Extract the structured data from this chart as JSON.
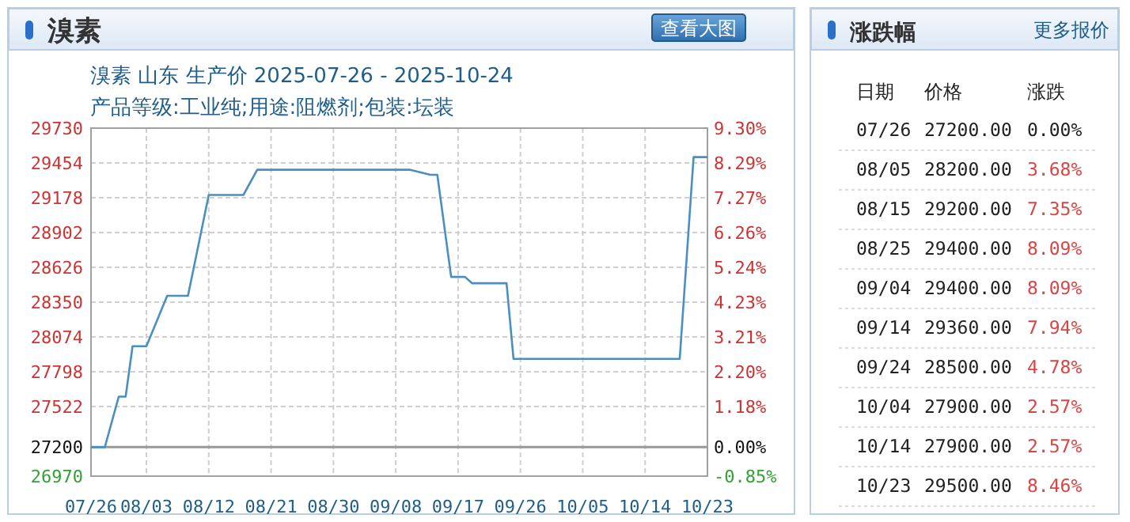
{
  "chart_data": [
    {
      "type": "line",
      "title": "溴素",
      "subtitle": "溴素 山东 生产价 2025-07-26 - 2025-10-24\n产品等级:工业纯;用途:阻燃剂;包装:坛装",
      "annotations": [
        "查看大图"
      ],
      "x": [
        "2025-07-26",
        "2025-07-28",
        "2025-07-30",
        "2025-07-31",
        "2025-08-01",
        "2025-08-03",
        "2025-08-06",
        "2025-08-09",
        "2025-08-12",
        "2025-08-17",
        "2025-08-19",
        "2025-09-10",
        "2025-09-13",
        "2025-09-14",
        "2025-09-16",
        "2025-09-18",
        "2025-09-19",
        "2025-09-24",
        "2025-09-25",
        "2025-10-19",
        "2025-10-21",
        "2025-10-23"
      ],
      "series": [
        {
          "color": "#4a8fbf",
          "values": [
            27200,
            27200,
            27600,
            27600,
            28000,
            28000,
            28400,
            28400,
            29200,
            29200,
            29400,
            29400,
            29360,
            29360,
            28550,
            28550,
            28500,
            28500,
            27900,
            27900,
            29500,
            29500
          ]
        }
      ],
      "xlim": [
        "2025-07-26",
        "2025-10-23"
      ],
      "xticks": [
        {
          "value": "2025-07-26",
          "label": "07/26"
        },
        {
          "value": "2025-08-03",
          "label": "08/03"
        },
        {
          "value": "2025-08-12",
          "label": "08/12"
        },
        {
          "value": "2025-08-21",
          "label": "08/21"
        },
        {
          "value": "2025-08-30",
          "label": "08/30"
        },
        {
          "value": "2025-09-08",
          "label": "09/08"
        },
        {
          "value": "2025-09-17",
          "label": "09/17"
        },
        {
          "value": "2025-09-26",
          "label": "09/26"
        },
        {
          "value": "2025-10-05",
          "label": "10/05"
        },
        {
          "value": "2025-10-14",
          "label": "10/14"
        },
        {
          "value": "2025-10-23",
          "label": "10/23"
        }
      ],
      "ylim": [
        26970,
        29730
      ],
      "yticks": [
        26970,
        27200,
        27522,
        27798,
        28074,
        28350,
        28626,
        28902,
        29178,
        29454,
        29730
      ],
      "y2lim": [
        -0.85,
        9.3
      ],
      "y2ticks": [
        {
          "value": -0.85,
          "label": "-0.85%"
        },
        {
          "value": 0,
          "label": "0.00%"
        },
        {
          "value": 1.18,
          "label": "1.18%"
        },
        {
          "value": 2.2,
          "label": "2.20%"
        },
        {
          "value": 3.21,
          "label": "3.21%"
        },
        {
          "value": 4.23,
          "label": "4.23%"
        },
        {
          "value": 5.24,
          "label": "5.24%"
        },
        {
          "value": 6.26,
          "label": "6.26%"
        },
        {
          "value": 7.27,
          "label": "7.27%"
        },
        {
          "value": 8.29,
          "label": "8.29%"
        },
        {
          "value": 9.3,
          "label": "9.30%"
        }
      ],
      "ref_lines": [
        {
          "axis": "y",
          "value": 27200,
          "color": "#999999"
        }
      ],
      "grid": true,
      "line_style": "solid",
      "marker": "none"
    },
    {
      "type": "other",
      "title": "涨跌幅",
      "annotations": [
        "更多报价",
        "日期",
        "价格",
        "涨跌",
        "07/26",
        "27200.00",
        "0.00%",
        "08/05",
        "28200.00",
        "3.68%",
        "08/15",
        "29200.00",
        "7.35%",
        "08/25",
        "29400.00",
        "8.09%",
        "09/04",
        "29400.00",
        "8.09%",
        "09/14",
        "29360.00",
        "7.94%",
        "09/24",
        "28500.00",
        "4.78%",
        "10/04",
        "27900.00",
        "2.57%",
        "10/14",
        "27900.00",
        "2.57%",
        "10/23",
        "29500.00",
        "8.46%"
      ]
    }
  ]
}
